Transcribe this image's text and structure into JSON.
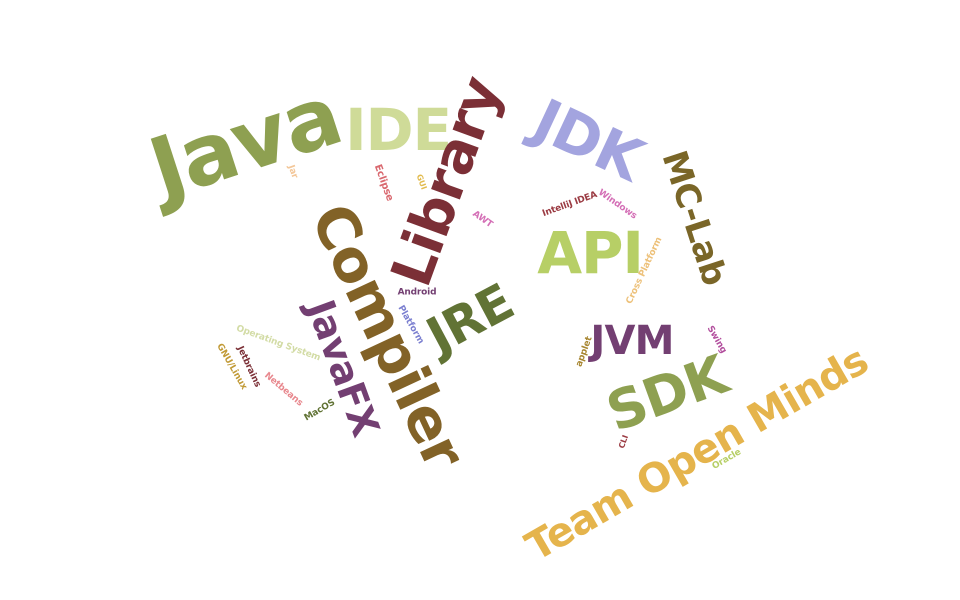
{
  "title": "Word cloud",
  "words": [
    {
      "text": "Java",
      "color": "#8ea051"
    },
    {
      "text": "IDE",
      "color": "#cfdb98"
    },
    {
      "text": "Library",
      "color": "#7b2f36"
    },
    {
      "text": "JDK",
      "color": "#a3a4df"
    },
    {
      "text": "MC-Lab",
      "color": "#7a6628"
    },
    {
      "text": "Compiler",
      "color": "#826227"
    },
    {
      "text": "JavaFX",
      "color": "#733f72"
    },
    {
      "text": "JRE",
      "color": "#617335"
    },
    {
      "text": "API",
      "color": "#b7cf66"
    },
    {
      "text": "JVM",
      "color": "#733f72"
    },
    {
      "text": "SDK",
      "color": "#8ea051"
    },
    {
      "text": "Team Open Minds",
      "color": "#e5b44c"
    },
    {
      "text": "Jar",
      "color": "#f3c799"
    },
    {
      "text": "Eclipse",
      "color": "#d9686f"
    },
    {
      "text": "GUI",
      "color": "#e2bb4e"
    },
    {
      "text": "AWT",
      "color": "#d46fb6"
    },
    {
      "text": "IntelliJ IDEA",
      "color": "#9b3b43"
    },
    {
      "text": "Windows",
      "color": "#d46fb6"
    },
    {
      "text": "Cross Platform",
      "color": "#edc17a"
    },
    {
      "text": "Android",
      "color": "#733f72"
    },
    {
      "text": "Platform",
      "color": "#7b7fd0"
    },
    {
      "text": "Operating System",
      "color": "#d3dca6"
    },
    {
      "text": "GNU/Linux",
      "color": "#c19a36"
    },
    {
      "text": "Jetbrains",
      "color": "#7b2f36"
    },
    {
      "text": "Netbeans",
      "color": "#e8888e"
    },
    {
      "text": "MacOS",
      "color": "#617335"
    },
    {
      "text": "applet",
      "color": "#a88732"
    },
    {
      "text": "Swing",
      "color": "#b24e9d"
    },
    {
      "text": "CLI",
      "color": "#9b3b43"
    },
    {
      "text": "Oracle",
      "color": "#b7cf66"
    }
  ]
}
